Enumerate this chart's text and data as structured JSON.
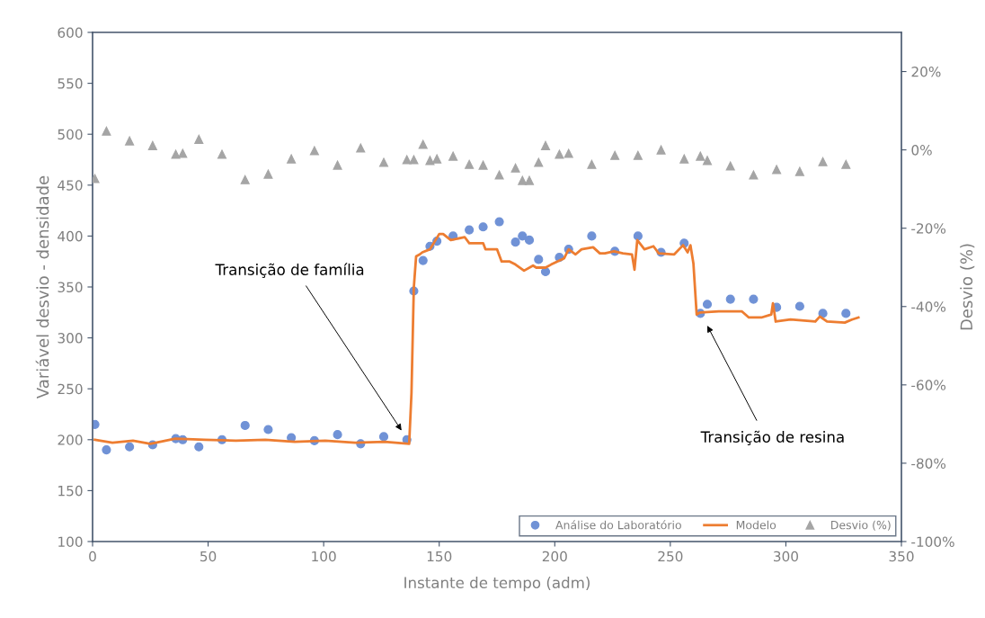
{
  "chart_data": {
    "type": "scatter",
    "xlabel": "Instante de tempo (adm)",
    "ylabel": "Variável desvio - densidade",
    "y2label": "Desvio (%)",
    "xlim": [
      0,
      350
    ],
    "xticks": [
      0,
      50,
      100,
      150,
      200,
      250,
      300,
      350
    ],
    "ylim": [
      100,
      600
    ],
    "yticks": [
      100,
      150,
      200,
      250,
      300,
      350,
      400,
      450,
      500,
      550,
      600
    ],
    "y2lim": [
      -100,
      30
    ],
    "y2ticks": [
      {
        "value": -100,
        "label": "-100%"
      },
      {
        "value": -80,
        "label": "-80%"
      },
      {
        "value": -60,
        "label": "-60%"
      },
      {
        "value": -40,
        "label": "-40%"
      },
      {
        "value": -20,
        "label": "-20%"
      },
      {
        "value": 0,
        "label": "0%"
      },
      {
        "value": 20,
        "label": "20%"
      }
    ],
    "grid": false,
    "legend": "bottom right",
    "series": [
      {
        "name": "Análise do Laboratório",
        "marker": "circle",
        "color": "#7092d6",
        "x": [
          1,
          6,
          16,
          26,
          36,
          39,
          46,
          56,
          66,
          76,
          86,
          96,
          106,
          116,
          126,
          136,
          139,
          143,
          146,
          149,
          156,
          163,
          169,
          176,
          183,
          186,
          189,
          193,
          196,
          202,
          206,
          216,
          226,
          236,
          246,
          256,
          263,
          266,
          276,
          286,
          296,
          306,
          316,
          326
        ],
        "values": [
          215,
          190,
          193,
          195,
          201,
          200,
          193,
          200,
          214,
          210,
          202,
          199,
          205,
          196,
          203,
          200,
          346,
          376,
          390,
          395,
          400,
          406,
          409,
          414,
          394,
          400,
          396,
          377,
          365,
          379,
          387,
          400,
          385,
          400,
          384,
          393,
          324,
          333,
          338,
          338,
          330,
          331,
          324,
          324
        ]
      },
      {
        "name": "Modelo",
        "type": "line",
        "marker": "none",
        "line_style": "solid",
        "color": "#ed7d31",
        "x": [
          1,
          8.6,
          17.5,
          25,
          35.8,
          48.6,
          62,
          74.7,
          87.5,
          100.7,
          113.6,
          126.4,
          137,
          138,
          139,
          140,
          141.6,
          142.7,
          146,
          150,
          151.7,
          155,
          161,
          163,
          169,
          170,
          175,
          177,
          180.5,
          183,
          186.7,
          190.6,
          192,
          196,
          198.4,
          204,
          206,
          209,
          211.6,
          216.6,
          219.5,
          221.7,
          225.6,
          229.5,
          233.4,
          234.5,
          235.7,
          238.8,
          242.7,
          245,
          251.7,
          255.5,
          257.5,
          258.7,
          260,
          261.4,
          263,
          271,
          281,
          284,
          289.4,
          293.7,
          294.4,
          295.6,
          302,
          312.7,
          314.7,
          317.8,
          325.5,
          328.6,
          331.4
        ],
        "values": [
          200,
          197,
          199,
          196,
          201,
          200,
          199,
          200,
          198,
          199,
          197,
          198,
          196,
          246,
          349,
          380,
          382,
          384,
          387,
          402,
          402,
          396,
          399,
          393,
          393,
          387,
          387,
          375,
          375,
          372,
          366,
          371,
          369,
          369,
          372,
          378,
          387,
          382,
          387,
          389,
          383,
          383,
          385,
          383,
          382,
          367,
          396,
          387,
          390,
          383,
          382,
          391,
          384,
          391,
          373,
          323,
          325,
          326,
          326,
          320,
          320,
          323,
          334,
          316,
          318,
          316,
          321,
          316,
          315,
          318,
          320
        ]
      },
      {
        "name": "Desvio (%)",
        "marker": "triangle",
        "axis": "y2",
        "color": "#a5a5a5",
        "x": [
          1,
          6,
          16,
          26,
          36,
          39,
          46,
          56,
          66,
          76,
          86,
          96,
          106,
          116,
          126,
          136,
          139,
          143,
          146,
          149,
          156,
          163,
          169,
          176,
          183,
          186,
          189,
          193,
          196,
          202,
          206,
          216,
          226,
          236,
          246,
          256,
          263,
          266,
          276,
          286,
          296,
          306,
          316,
          326
        ],
        "values": [
          -7.3,
          4.8,
          2.3,
          1.1,
          -1.1,
          -0.9,
          2.7,
          -1.1,
          -7.6,
          -6.2,
          -2.3,
          -0.2,
          -3.9,
          0.5,
          -3.2,
          -2.5,
          -2.5,
          1.4,
          -2.7,
          -2.3,
          -1.6,
          -3.7,
          -3.9,
          -6.4,
          -4.6,
          -7.8,
          -7.8,
          -3.2,
          1.1,
          -1.1,
          -0.9,
          -3.7,
          -1.4,
          -1.4,
          0,
          -2.3,
          -1.6,
          -2.7,
          -4.1,
          -6.4,
          -5.0,
          -5.5,
          -3.0,
          -3.7
        ]
      }
    ],
    "annotations": [
      "Transição de família",
      "Transição de resina"
    ]
  }
}
